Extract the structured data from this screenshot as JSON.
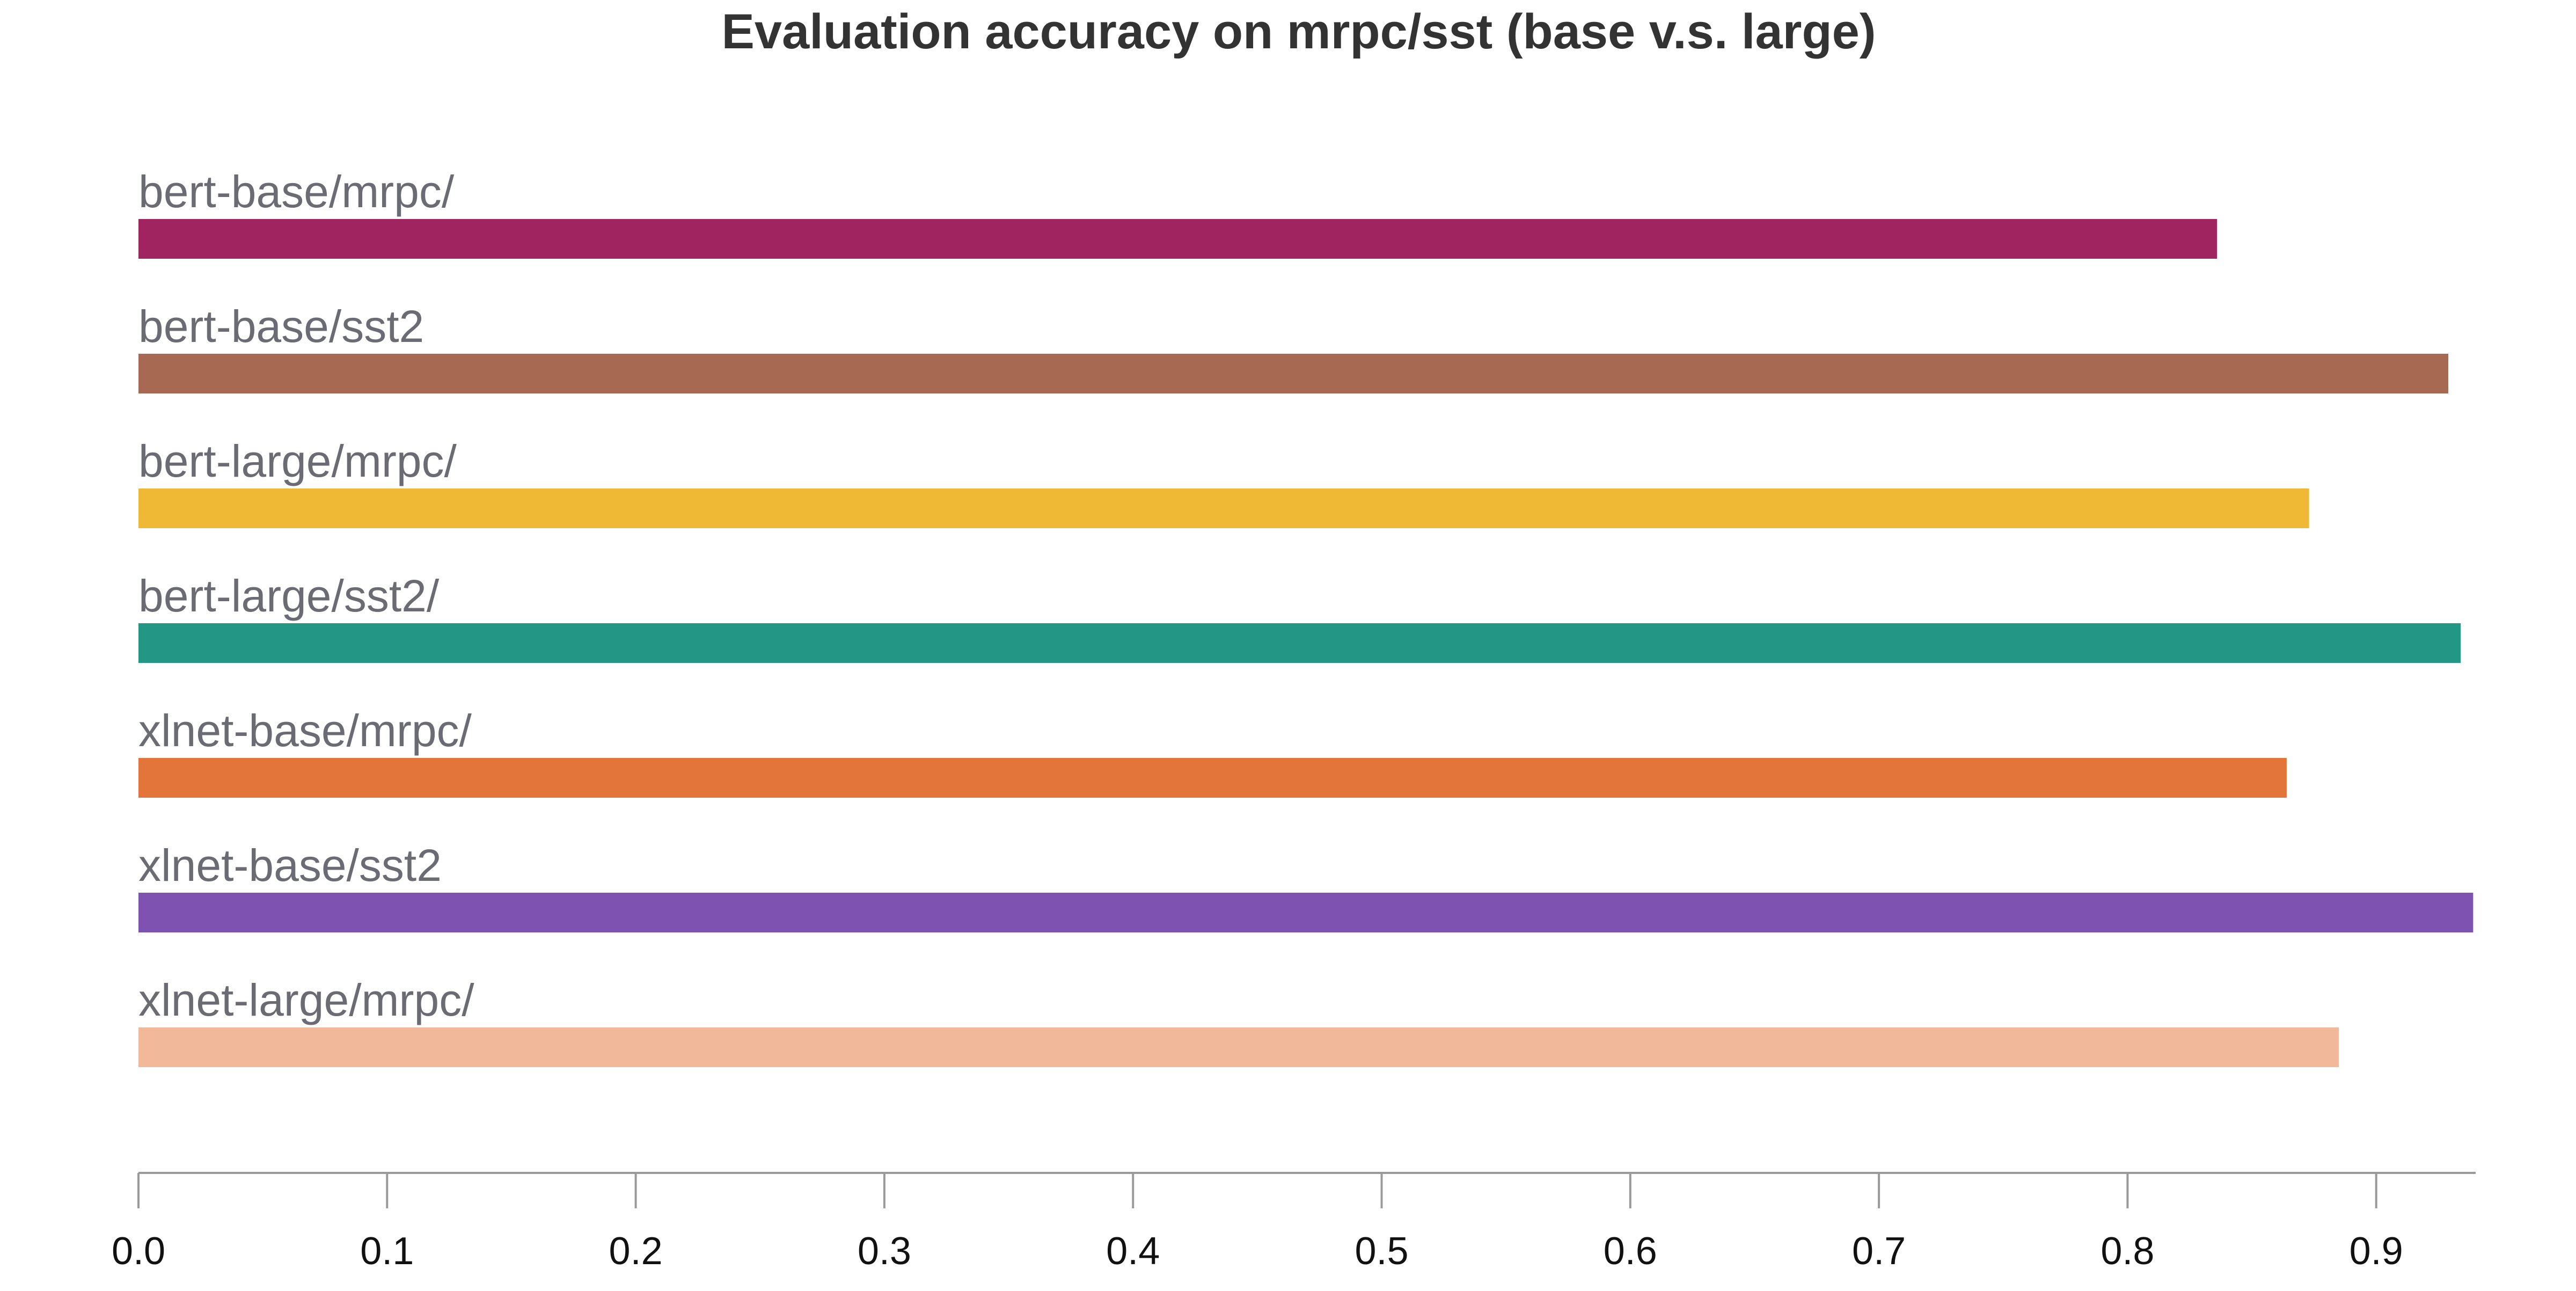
{
  "chart_data": {
    "type": "bar",
    "orientation": "horizontal",
    "title": "Evaluation accuracy on mrpc/sst (base v.s. large)",
    "xlabel": "",
    "ylabel": "",
    "xlim": [
      0,
      0.94
    ],
    "xticks": [
      "0.0",
      "0.1",
      "0.2",
      "0.3",
      "0.4",
      "0.5",
      "0.6",
      "0.7",
      "0.8",
      "0.9"
    ],
    "grid": false,
    "legend": "none",
    "categories": [
      "bert-base/mrpc/",
      "bert-base/sst2",
      "bert-large/mrpc/",
      "bert-large/sst2/",
      "xlnet-base/mrpc/",
      "xlnet-base/sst2",
      "xlnet-large/mrpc/"
    ],
    "values": [
      0.836,
      0.929,
      0.873,
      0.934,
      0.864,
      0.939,
      0.885
    ],
    "colors": [
      "#a0245f",
      "#a76951",
      "#efb936",
      "#239685",
      "#e3743a",
      "#7e52b1",
      "#f2b89a"
    ]
  }
}
